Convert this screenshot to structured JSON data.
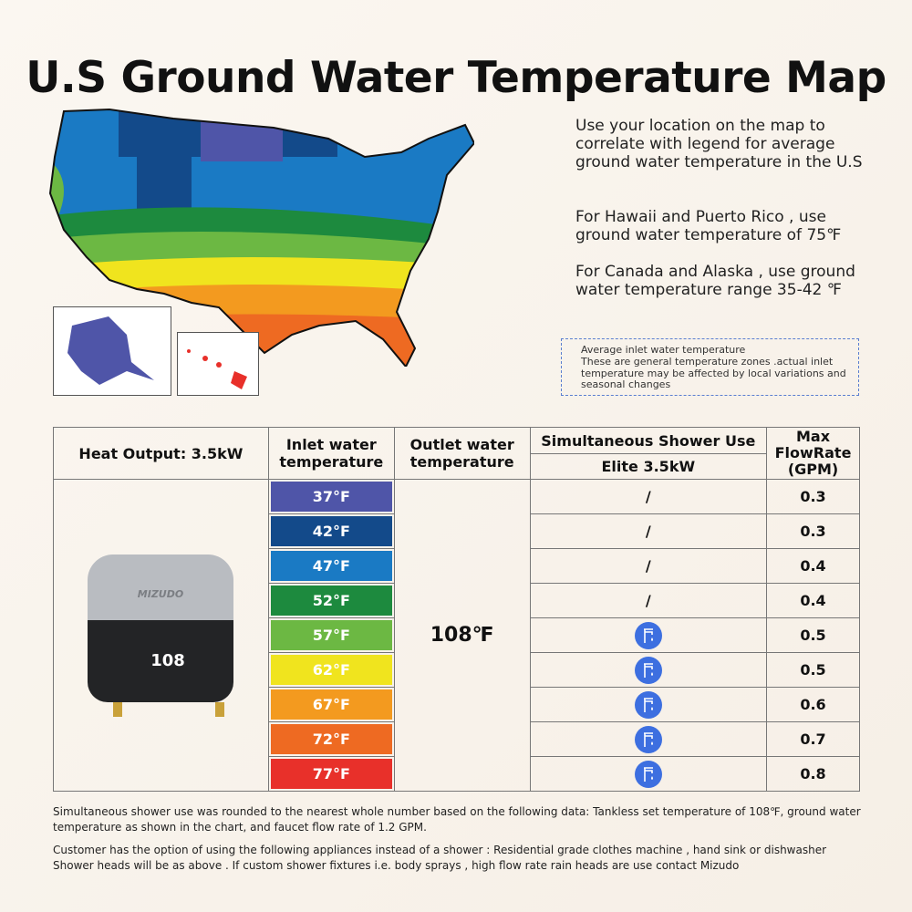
{
  "title": "U.S Ground Water Temperature Map",
  "info": {
    "p1": "Use your location on the map to correlate with legend for average ground water temperature in the U.S",
    "p2": "For Hawaii and Puerto Rico , use ground water temperature of 75℉",
    "p3": "For Canada and Alaska , use ground water temperature range 35-42 ℉"
  },
  "note": {
    "heading": "Average inlet water temperature",
    "body": "These are general temperature zones .actual inlet temperature may be affected by local variations and seasonal changes"
  },
  "table": {
    "heat_output": "Heat Output: 3.5kW",
    "inlet_header": "Inlet water temperature",
    "outlet_header": "Outlet water temperature",
    "shower_header": "Simultaneous Shower Use",
    "model": "Elite 3.5kW",
    "flow_header": "Max FlowRate (GPM)",
    "outlet_value": "108℉",
    "rows": [
      {
        "inlet": "37°F",
        "color": "#4f55a8",
        "shower": "/",
        "flow": "0.3"
      },
      {
        "inlet": "42°F",
        "color": "#134a8a",
        "shower": "/",
        "flow": "0.3"
      },
      {
        "inlet": "47°F",
        "color": "#1a7ac4",
        "shower": "/",
        "flow": "0.4"
      },
      {
        "inlet": "52°F",
        "color": "#1d8a3e",
        "shower": "/",
        "flow": "0.4"
      },
      {
        "inlet": "57°F",
        "color": "#6cb843",
        "shower": "faucet-icon",
        "flow": "0.5"
      },
      {
        "inlet": "62°F",
        "color": "#f0e41e",
        "shower": "faucet-icon",
        "flow": "0.5"
      },
      {
        "inlet": "67°F",
        "color": "#f39a1f",
        "shower": "faucet-icon",
        "flow": "0.6"
      },
      {
        "inlet": "72°F",
        "color": "#ee6a22",
        "shower": "faucet-icon",
        "flow": "0.7"
      },
      {
        "inlet": "77°F",
        "color": "#e8302a",
        "shower": "faucet-icon",
        "flow": "0.8"
      }
    ]
  },
  "product": {
    "brand": "MIZUDO",
    "display": "108"
  },
  "footer": {
    "f1": "Simultaneous shower use was rounded to the nearest whole number based on the following data: Tankless set temperature of 108℉, ground water temperature as shown in the chart, and faucet flow rate of  1.2 GPM.",
    "f2": "Customer has the option of using the following appliances instead of a shower : Residential grade clothes machine , hand sink or dishwasher Shower heads will be as above . If custom shower fixtures i.e. body sprays , high flow rate rain heads are use contact Mizudo"
  }
}
